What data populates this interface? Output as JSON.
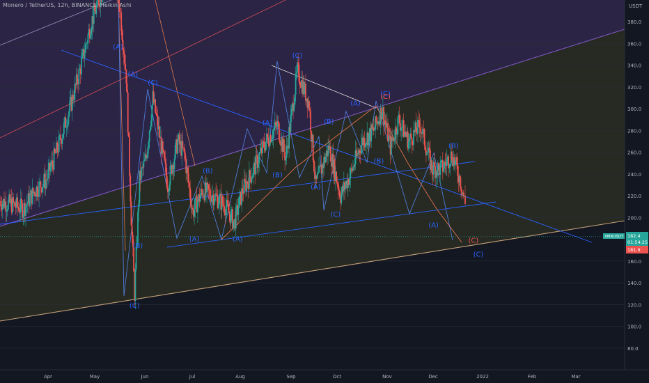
{
  "header": {
    "title": "Monero / TetherUS, 12h, BINANCE, Heikin Ashi",
    "currency": "USDT"
  },
  "colors": {
    "background": "#131722",
    "purple_zone": "#2b2445",
    "olive_zone": "#262a23",
    "up_candle": "#26a69a",
    "down_candle": "#ef5350",
    "trend_blue": "#2962ff",
    "channel_line": "#7e57c2",
    "support_line": "#c8a27a",
    "wave_label": "#2962ff",
    "wave_label_red": "#ef5350",
    "last_price_bg": "#26a69a",
    "last_price_red_bg": "#ef5350"
  },
  "chart_data": {
    "type": "candlestick",
    "title": "Monero / TetherUS, 12h, BINANCE, Heikin Ashi",
    "y_axis": {
      "ticks": [
        "380.0",
        "360.0",
        "340.0",
        "320.0",
        "300.0",
        "280.0",
        "260.0",
        "240.0",
        "220.0",
        "200.0",
        "160.0",
        "140.0",
        "120.0",
        "100.0",
        "80.0"
      ],
      "range": [
        60,
        400
      ],
      "unit": "USDT"
    },
    "x_axis": {
      "ticks": [
        "Apr",
        "May",
        "Jun",
        "Jul",
        "Aug",
        "Sep",
        "Oct",
        "Nov",
        "Dec",
        "2022",
        "Feb",
        "Mar"
      ],
      "start": "2021-03-01",
      "end": "2022-03-12"
    },
    "price_path": [
      [
        "2021-03-01",
        215
      ],
      [
        "2021-03-08",
        212
      ],
      [
        "2021-03-15",
        208
      ],
      [
        "2021-03-22",
        225
      ],
      [
        "2021-03-29",
        235
      ],
      [
        "2021-04-05",
        265
      ],
      [
        "2021-04-12",
        300
      ],
      [
        "2021-04-18",
        335
      ],
      [
        "2021-04-25",
        380
      ],
      [
        "2021-05-02",
        410
      ],
      [
        "2021-05-07",
        430
      ],
      [
        "2021-05-12",
        395
      ],
      [
        "2021-05-16",
        330
      ],
      [
        "2021-05-19",
        200
      ],
      [
        "2021-05-21",
        130
      ],
      [
        "2021-05-24",
        235
      ],
      [
        "2021-05-28",
        255
      ],
      [
        "2021-06-01",
        310
      ],
      [
        "2021-06-05",
        275
      ],
      [
        "2021-06-10",
        230
      ],
      [
        "2021-06-16",
        270
      ],
      [
        "2021-06-20",
        258
      ],
      [
        "2021-06-25",
        205
      ],
      [
        "2021-07-01",
        225
      ],
      [
        "2021-07-08",
        220
      ],
      [
        "2021-07-15",
        210
      ],
      [
        "2021-07-20",
        195
      ],
      [
        "2021-07-25",
        225
      ],
      [
        "2021-08-01",
        245
      ],
      [
        "2021-08-08",
        270
      ],
      [
        "2021-08-15",
        285
      ],
      [
        "2021-08-20",
        255
      ],
      [
        "2021-08-27",
        335
      ],
      [
        "2021-09-03",
        305
      ],
      [
        "2021-09-07",
        230
      ],
      [
        "2021-09-15",
        265
      ],
      [
        "2021-09-22",
        220
      ],
      [
        "2021-09-28",
        240
      ],
      [
        "2021-10-05",
        270
      ],
      [
        "2021-10-12",
        280
      ],
      [
        "2021-10-17",
        300
      ],
      [
        "2021-10-22",
        265
      ],
      [
        "2021-10-27",
        290
      ],
      [
        "2021-11-02",
        270
      ],
      [
        "2021-11-09",
        285
      ],
      [
        "2021-11-16",
        245
      ],
      [
        "2021-11-22",
        245
      ],
      [
        "2021-11-28",
        258
      ],
      [
        "2021-12-03",
        235
      ],
      [
        "2021-12-07",
        205
      ],
      [
        "2021-12-12",
        200
      ],
      [
        "2021-12-16",
        182
      ]
    ],
    "last_price": {
      "symbol": "XMRUSDT",
      "value": "182.4",
      "countdown": "01:54:25",
      "secondary": "181.9"
    },
    "wave_labels": [
      {
        "text": "(A)",
        "date": "2021-05-11",
        "price": 355,
        "color": "blue"
      },
      {
        "text": "(A)",
        "date": "2021-05-20",
        "price": 330,
        "color": "blue"
      },
      {
        "text": "(C)",
        "date": "2021-06-01",
        "price": 322,
        "color": "blue"
      },
      {
        "text": "(B)",
        "date": "2021-05-23",
        "price": 172,
        "color": "blue"
      },
      {
        "text": "(C)",
        "date": "2021-05-21",
        "price": 117,
        "color": "blue"
      },
      {
        "text": "(B)",
        "date": "2021-07-04",
        "price": 241,
        "color": "blue"
      },
      {
        "text": "(A)",
        "date": "2021-06-26",
        "price": 178,
        "color": "blue"
      },
      {
        "text": "(A)",
        "date": "2021-07-22",
        "price": 178,
        "color": "blue"
      },
      {
        "text": "(A)",
        "date": "2021-08-09",
        "price": 285,
        "color": "blue"
      },
      {
        "text": "(C)",
        "date": "2021-08-27",
        "price": 347,
        "color": "blue"
      },
      {
        "text": "(B)",
        "date": "2021-08-15",
        "price": 237,
        "color": "blue"
      },
      {
        "text": "(A)",
        "date": "2021-09-07",
        "price": 226,
        "color": "blue"
      },
      {
        "text": "(B)",
        "date": "2021-09-15",
        "price": 286,
        "color": "blue"
      },
      {
        "text": "(C)",
        "date": "2021-09-19",
        "price": 201,
        "color": "blue"
      },
      {
        "text": "(A)",
        "date": "2021-10-01",
        "price": 303,
        "color": "blue"
      },
      {
        "text": "(B)",
        "date": "2021-10-15",
        "price": 250,
        "color": "blue"
      },
      {
        "text": "(C)",
        "date": "2021-10-19",
        "price": 312,
        "color": "blue"
      },
      {
        "text": "(C)",
        "date": "2021-10-19",
        "price": 309,
        "color": "red"
      },
      {
        "text": "(B)",
        "date": "2021-11-29",
        "price": 264,
        "color": "blue"
      },
      {
        "text": "(A)",
        "date": "2021-11-17",
        "price": 191,
        "color": "blue"
      },
      {
        "text": "(C)",
        "date": "2021-12-11",
        "price": 177,
        "color": "red"
      },
      {
        "text": "(C)",
        "date": "2021-12-14",
        "price": 164,
        "color": "blue"
      }
    ]
  }
}
